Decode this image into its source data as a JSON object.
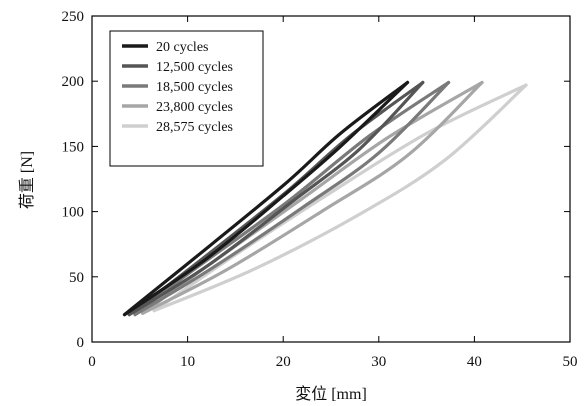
{
  "chart_data": {
    "type": "line",
    "xlabel": "変位 [mm]",
    "ylabel": "荷重 [N]",
    "xlim": [
      0,
      50
    ],
    "ylim": [
      0,
      250
    ],
    "xticks": [
      "0",
      "10",
      "20",
      "30",
      "40",
      "50"
    ],
    "yticks": [
      "0",
      "50",
      "100",
      "150",
      "200",
      "250"
    ],
    "grid": false,
    "legend_position": "top-left",
    "series": [
      {
        "name": "20 cycles",
        "color": "#1a1a1a",
        "loading": [
          [
            3.4,
            21
          ],
          [
            10,
            60
          ],
          [
            20,
            120
          ],
          [
            26,
            160
          ],
          [
            33.0,
            199
          ]
        ],
        "unloading": [
          [
            33.0,
            199
          ],
          [
            26,
            150
          ],
          [
            20,
            112
          ],
          [
            12,
            64
          ],
          [
            3.4,
            21
          ]
        ]
      },
      {
        "name": "12,500 cycles",
        "color": "#555555",
        "loading": [
          [
            3.9,
            21
          ],
          [
            10,
            55
          ],
          [
            20,
            113
          ],
          [
            27,
            158
          ],
          [
            34.6,
            199
          ]
        ],
        "unloading": [
          [
            34.6,
            199
          ],
          [
            28,
            148
          ],
          [
            21,
            108
          ],
          [
            12,
            58
          ],
          [
            3.9,
            21
          ]
        ]
      },
      {
        "name": "18,500 cycles",
        "color": "#7a7a7a",
        "loading": [
          [
            4.5,
            21
          ],
          [
            10,
            52
          ],
          [
            20,
            105
          ],
          [
            29,
            158
          ],
          [
            37.3,
            199
          ]
        ],
        "unloading": [
          [
            37.3,
            199
          ],
          [
            30,
            145
          ],
          [
            22,
            103
          ],
          [
            12,
            54
          ],
          [
            4.5,
            21
          ]
        ]
      },
      {
        "name": "23,800 cycles",
        "color": "#a6a6a6",
        "loading": [
          [
            5.3,
            22
          ],
          [
            12,
            58
          ],
          [
            22,
            110
          ],
          [
            31,
            157
          ],
          [
            40.8,
            199
          ]
        ],
        "unloading": [
          [
            40.8,
            199
          ],
          [
            33,
            143
          ],
          [
            24,
            100
          ],
          [
            14,
            55
          ],
          [
            5.3,
            22
          ]
        ]
      },
      {
        "name": "28,575 cycles",
        "color": "#cfcfcf",
        "loading": [
          [
            6.5,
            24
          ],
          [
            14,
            62
          ],
          [
            24,
            110
          ],
          [
            35,
            160
          ],
          [
            45.4,
            197
          ]
        ],
        "unloading": [
          [
            45.4,
            197
          ],
          [
            37,
            140
          ],
          [
            28,
            98
          ],
          [
            17,
            56
          ],
          [
            6.5,
            24
          ]
        ]
      }
    ]
  }
}
